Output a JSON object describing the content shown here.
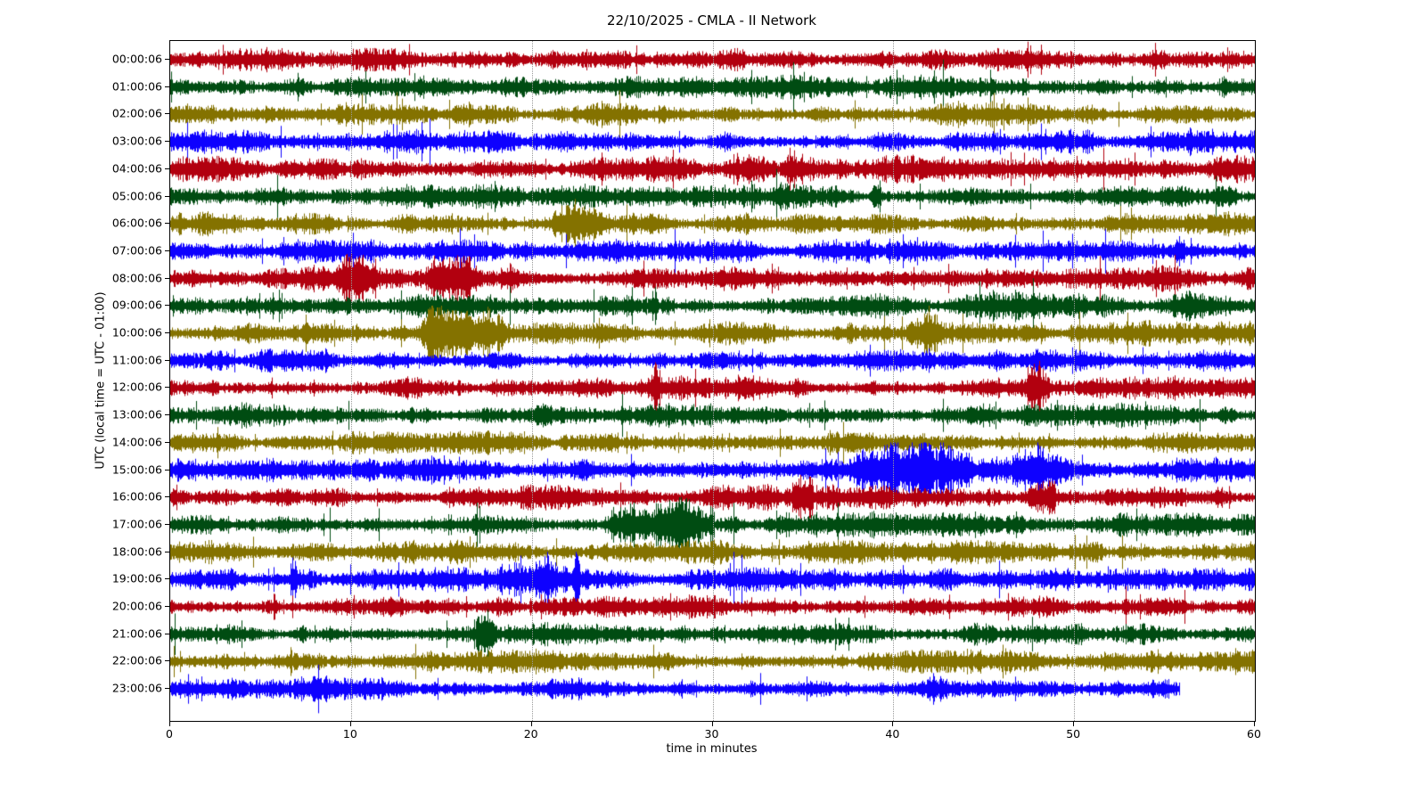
{
  "chart_data": {
    "type": "line",
    "subtype": "helicorder-dayplot",
    "title": "22/10/2025 - CMLA - II Network",
    "xlabel": "time in minutes",
    "ylabel": "UTC (local time = UTC - 01:00)",
    "xlim": [
      0,
      60
    ],
    "x_ticks": [
      0,
      10,
      20,
      30,
      40,
      50,
      60
    ],
    "grid_minutes": [
      10,
      20,
      30,
      40,
      50
    ],
    "grid_style": "vertical-dotted",
    "background_color": "#ffffff",
    "frame_color": "#000000",
    "gridline_color": "#9a9a9a",
    "trace_colors": [
      "#B2000F",
      "#004C12",
      "#847200",
      "#0E01FF"
    ],
    "rows": [
      {
        "label": "00:00:06",
        "color": "#B2000F",
        "end_minute": 60,
        "base_amplitude": 1.0,
        "events": []
      },
      {
        "label": "01:00:06",
        "color": "#004C12",
        "end_minute": 60,
        "base_amplitude": 1.0,
        "events": [
          {
            "start": 57.5,
            "end": 59.5,
            "amp": 1.5
          }
        ]
      },
      {
        "label": "02:00:06",
        "color": "#847200",
        "end_minute": 60,
        "base_amplitude": 1.0,
        "events": []
      },
      {
        "label": "03:00:06",
        "color": "#0E01FF",
        "end_minute": 60,
        "base_amplitude": 1.0,
        "events": [
          {
            "start": 56.0,
            "end": 58.0,
            "amp": 1.3
          }
        ]
      },
      {
        "label": "04:00:06",
        "color": "#B2000F",
        "end_minute": 60,
        "base_amplitude": 1.15,
        "events": [
          {
            "start": 30.5,
            "end": 33.5,
            "amp": 2.6
          },
          {
            "start": 33.5,
            "end": 37.5,
            "amp": 1.8
          }
        ]
      },
      {
        "label": "05:00:06",
        "color": "#004C12",
        "end_minute": 60,
        "base_amplitude": 1.0,
        "events": [
          {
            "start": 31.0,
            "end": 38.0,
            "amp": 1.8
          },
          {
            "start": 38.8,
            "end": 39.3,
            "amp": 3.2
          },
          {
            "start": 57.5,
            "end": 59.3,
            "amp": 1.6
          }
        ]
      },
      {
        "label": "06:00:06",
        "color": "#847200",
        "end_minute": 60,
        "base_amplitude": 1.0,
        "events": [
          {
            "start": 21.0,
            "end": 24.5,
            "amp": 2.0
          },
          {
            "start": 24.5,
            "end": 28.0,
            "amp": 1.5
          }
        ]
      },
      {
        "label": "07:00:06",
        "color": "#0E01FF",
        "end_minute": 60,
        "base_amplitude": 1.0,
        "events": [
          {
            "start": 55.6,
            "end": 56.1,
            "amp": 2.6
          }
        ]
      },
      {
        "label": "08:00:06",
        "color": "#B2000F",
        "end_minute": 60,
        "base_amplitude": 1.1,
        "events": [
          {
            "start": 9.3,
            "end": 11.5,
            "amp": 2.8
          },
          {
            "start": 14.3,
            "end": 17.3,
            "amp": 2.4
          },
          {
            "start": 17.8,
            "end": 19.2,
            "amp": 1.6
          }
        ]
      },
      {
        "label": "09:00:06",
        "color": "#004C12",
        "end_minute": 60,
        "base_amplitude": 1.0,
        "events": [
          {
            "start": 26.6,
            "end": 27.0,
            "amp": 2.2
          },
          {
            "start": 43.5,
            "end": 48.5,
            "amp": 1.7
          },
          {
            "start": 55.0,
            "end": 59.0,
            "amp": 1.3
          }
        ]
      },
      {
        "label": "10:00:06",
        "color": "#847200",
        "end_minute": 60,
        "base_amplitude": 1.05,
        "events": [
          {
            "start": 13.8,
            "end": 16.8,
            "amp": 3.4
          },
          {
            "start": 16.8,
            "end": 18.8,
            "amp": 2.6
          },
          {
            "start": 40.8,
            "end": 42.8,
            "amp": 2.2
          }
        ]
      },
      {
        "label": "11:00:06",
        "color": "#0E01FF",
        "end_minute": 60,
        "base_amplitude": 1.0,
        "events": []
      },
      {
        "label": "12:00:06",
        "color": "#B2000F",
        "end_minute": 60,
        "base_amplitude": 1.0,
        "events": [
          {
            "start": 26.6,
            "end": 27.1,
            "amp": 2.4
          },
          {
            "start": 47.3,
            "end": 48.6,
            "amp": 2.6
          }
        ]
      },
      {
        "label": "13:00:06",
        "color": "#004C12",
        "end_minute": 60,
        "base_amplitude": 1.0,
        "events": [
          {
            "start": 2.8,
            "end": 5.2,
            "amp": 1.9
          }
        ]
      },
      {
        "label": "14:00:06",
        "color": "#847200",
        "end_minute": 60,
        "base_amplitude": 1.0,
        "events": []
      },
      {
        "label": "15:00:06",
        "color": "#0E01FF",
        "end_minute": 60,
        "base_amplitude": 1.15,
        "events": [
          {
            "start": 37.5,
            "end": 44.5,
            "amp": 2.2
          },
          {
            "start": 40.0,
            "end": 40.4,
            "amp": 3.0
          },
          {
            "start": 42.5,
            "end": 42.9,
            "amp": 3.0
          },
          {
            "start": 46.5,
            "end": 50.0,
            "amp": 2.4
          }
        ]
      },
      {
        "label": "16:00:06",
        "color": "#B2000F",
        "end_minute": 60,
        "base_amplitude": 1.05,
        "events": [
          {
            "start": 34.3,
            "end": 35.6,
            "amp": 1.9
          },
          {
            "start": 47.4,
            "end": 49.0,
            "amp": 2.6
          }
        ]
      },
      {
        "label": "17:00:06",
        "color": "#004C12",
        "end_minute": 60,
        "base_amplitude": 1.1,
        "events": [
          {
            "start": 23.8,
            "end": 30.0,
            "amp": 2.6
          },
          {
            "start": 24.3,
            "end": 24.8,
            "amp": 3.2
          },
          {
            "start": 29.7,
            "end": 30.1,
            "amp": 3.0
          }
        ]
      },
      {
        "label": "18:00:06",
        "color": "#847200",
        "end_minute": 60,
        "base_amplitude": 1.0,
        "events": []
      },
      {
        "label": "19:00:06",
        "color": "#0E01FF",
        "end_minute": 60,
        "base_amplitude": 1.05,
        "events": [
          {
            "start": 6.6,
            "end": 7.0,
            "amp": 2.8
          },
          {
            "start": 18.0,
            "end": 23.0,
            "amp": 1.6
          },
          {
            "start": 20.0,
            "end": 21.2,
            "amp": 2.0
          },
          {
            "start": 22.2,
            "end": 22.7,
            "amp": 3.0
          }
        ]
      },
      {
        "label": "20:00:06",
        "color": "#B2000F",
        "end_minute": 60,
        "base_amplitude": 1.0,
        "events": []
      },
      {
        "label": "21:00:06",
        "color": "#004C12",
        "end_minute": 60,
        "base_amplitude": 1.0,
        "events": [
          {
            "start": 16.9,
            "end": 17.9,
            "amp": 3.0
          }
        ]
      },
      {
        "label": "22:00:06",
        "color": "#847200",
        "end_minute": 60,
        "base_amplitude": 1.0,
        "events": []
      },
      {
        "label": "23:00:06",
        "color": "#0E01FF",
        "end_minute": 55.8,
        "base_amplitude": 1.05,
        "events": []
      }
    ]
  }
}
